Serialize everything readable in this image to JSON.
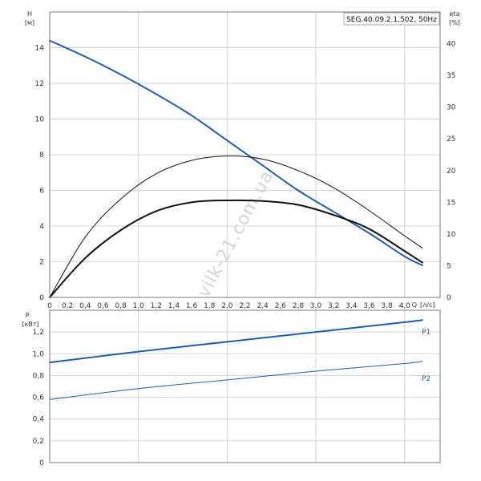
{
  "model_label": "SEG.40.09.2.1.502, 50Hz",
  "watermark": "vilk-21.com.ua",
  "colors": {
    "blue": "#1f5fb0",
    "black": "#111111",
    "grid": "#d4d4d4",
    "frame": "#777777"
  },
  "chart_data": [
    {
      "type": "line",
      "title": "",
      "x_name": "Q",
      "x_unit": "[л/с]",
      "xlim": [
        0,
        4.4
      ],
      "x_ticks": [
        "0",
        "0,2",
        "0,4",
        "0,6",
        "0,8",
        "1,0",
        "1,2",
        "1,4",
        "1,6",
        "1,8",
        "2,0",
        "2,2",
        "2,4",
        "2,6",
        "2,8",
        "3,0",
        "3,2",
        "3,4",
        "3,6",
        "3,8",
        "4,0"
      ],
      "y_left": {
        "name": "H",
        "unit": "[м]",
        "ylim": [
          0,
          16
        ],
        "ticks": [
          "0",
          "2",
          "4",
          "6",
          "8",
          "10",
          "12",
          "14"
        ]
      },
      "y_right": {
        "name": "eta",
        "unit": "[%]",
        "ylim": [
          0,
          45
        ],
        "ticks": [
          "0",
          "5",
          "10",
          "15",
          "20",
          "25",
          "30",
          "35",
          "40"
        ]
      },
      "grid": true,
      "series": [
        {
          "axis": "left",
          "color": "#1f5fb0",
          "width": 2,
          "x": [
            0,
            0.4,
            0.8,
            1.2,
            1.6,
            2.0,
            2.4,
            2.8,
            3.2,
            3.6,
            4.0,
            4.2
          ],
          "y": [
            14.4,
            13.5,
            12.5,
            11.4,
            10.2,
            8.8,
            7.4,
            6.0,
            4.8,
            3.6,
            2.3,
            1.8
          ]
        },
        {
          "axis": "right",
          "color": "#111111",
          "width": 1,
          "x": [
            0,
            0.4,
            0.8,
            1.2,
            1.6,
            2.0,
            2.4,
            2.8,
            3.2,
            3.6,
            4.0,
            4.2
          ],
          "y": [
            0,
            9.5,
            15.5,
            19.5,
            21.6,
            22.3,
            21.8,
            20.0,
            17.3,
            13.7,
            9.7,
            7.8
          ]
        },
        {
          "axis": "right",
          "color": "#111111",
          "width": 2,
          "x": [
            0,
            0.4,
            0.8,
            1.2,
            1.6,
            2.0,
            2.4,
            2.8,
            3.2,
            3.6,
            4.0,
            4.2
          ],
          "y": [
            0,
            6.2,
            10.6,
            13.6,
            15.0,
            15.3,
            15.2,
            14.6,
            13.0,
            10.8,
            7.3,
            5.5
          ]
        }
      ]
    },
    {
      "type": "line",
      "title": "",
      "y_left": {
        "name": "P",
        "unit": "[кВт]",
        "ylim": [
          0,
          1.4
        ],
        "ticks": [
          "0",
          "0,2",
          "0,4",
          "0,6",
          "0,8",
          "1,0",
          "1,2"
        ]
      },
      "xlim": [
        0,
        4.4
      ],
      "grid": true,
      "series": [
        {
          "name": "P1",
          "color": "#1f5fb0",
          "width": 2,
          "x": [
            0,
            1.0,
            2.0,
            3.0,
            4.0,
            4.2
          ],
          "y": [
            0.92,
            1.02,
            1.11,
            1.2,
            1.29,
            1.31
          ]
        },
        {
          "name": "P2",
          "color": "#1f5fb0",
          "width": 1,
          "x": [
            0,
            1.0,
            2.0,
            3.0,
            4.0,
            4.2
          ],
          "y": [
            0.58,
            0.68,
            0.76,
            0.84,
            0.91,
            0.93
          ]
        }
      ]
    }
  ]
}
